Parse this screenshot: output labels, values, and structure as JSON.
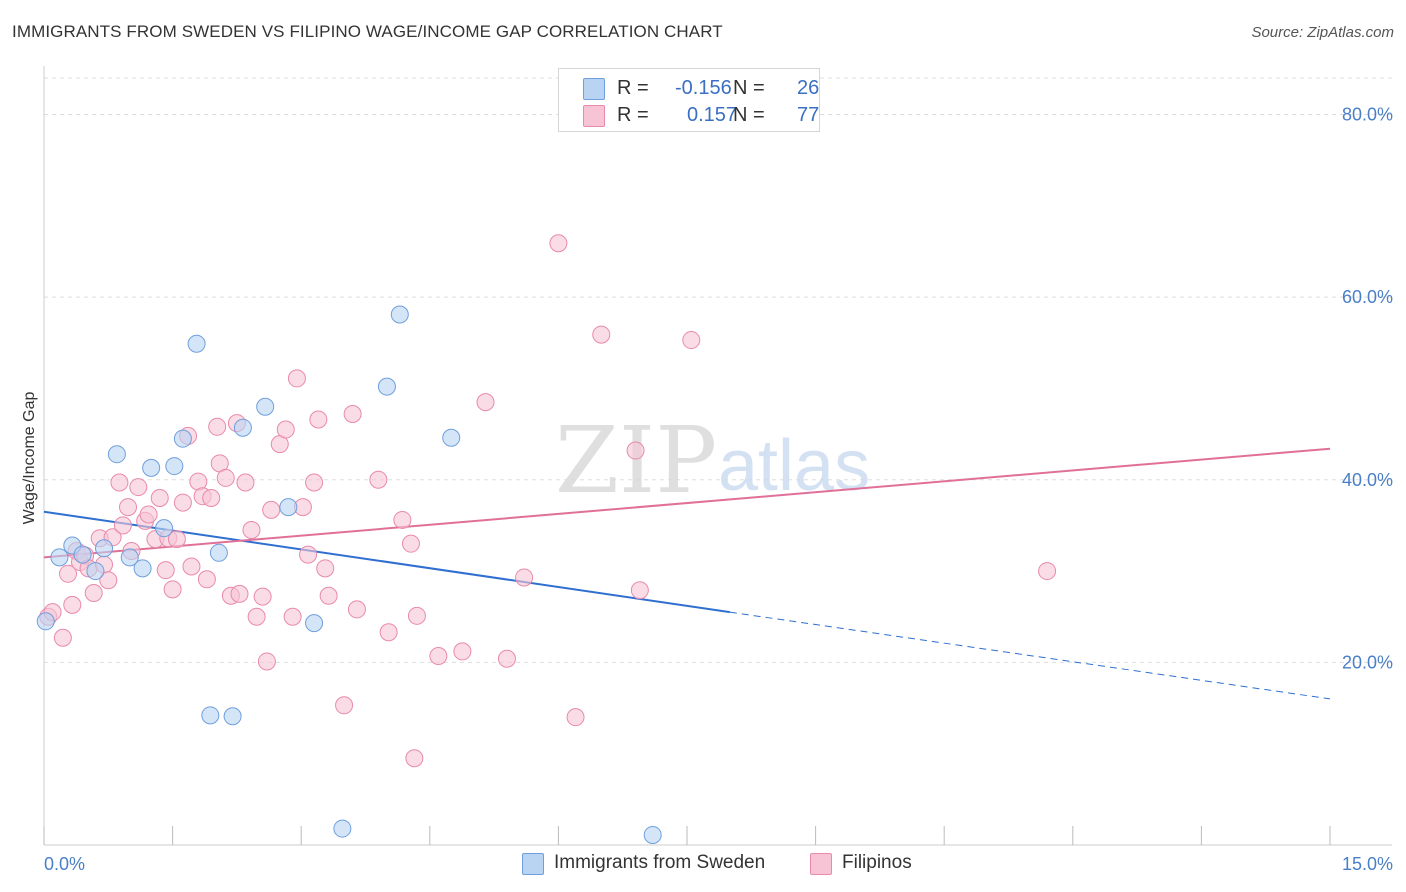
{
  "title": "IMMIGRANTS FROM SWEDEN VS FILIPINO WAGE/INCOME GAP CORRELATION CHART",
  "source": "Source: ZipAtlas.com",
  "watermark": {
    "zip": "ZIP",
    "atlas": "atlas"
  },
  "legend": {
    "rows": [
      {
        "r_label": "R =",
        "r_value": "-0.156",
        "n_label": "N =",
        "n_value": "26"
      },
      {
        "r_label": "R =",
        "r_value": "0.157",
        "n_label": "N =",
        "n_value": "77"
      }
    ]
  },
  "bottom_legend": [
    "Immigrants from Sweden",
    "Filipinos"
  ],
  "colors": {
    "sweden_fill": "#b9d3f3",
    "sweden_stroke": "#6f9fdc",
    "sweden_line": "#2f6fd0",
    "filipino_fill": "#f7c4d5",
    "filipino_stroke": "#e98aab",
    "filipino_line": "#e07098",
    "tick_text": "#4a7fc8",
    "grid": "#dddddd"
  },
  "chart_data": {
    "type": "scatter",
    "title": "IMMIGRANTS FROM SWEDEN VS FILIPINO WAGE/INCOME GAP CORRELATION CHART",
    "xlabel": "",
    "ylabel": "Wage/Income Gap",
    "xlim": [
      0,
      15
    ],
    "ylim": [
      0,
      84
    ],
    "x_tick_labels": [
      "0.0%",
      "15.0%"
    ],
    "y_ticks": [
      20,
      40,
      60,
      80
    ],
    "y_tick_labels": [
      "20.0%",
      "40.0%",
      "60.0%",
      "80.0%"
    ],
    "grid": true,
    "series": [
      {
        "name": "Immigrants from Sweden",
        "r": -0.156,
        "n": 26,
        "points": [
          [
            0.02,
            24.5
          ],
          [
            0.18,
            31.5
          ],
          [
            0.33,
            32.8
          ],
          [
            0.45,
            31.8
          ],
          [
            0.6,
            30.0
          ],
          [
            0.7,
            32.5
          ],
          [
            0.85,
            42.8
          ],
          [
            1.0,
            31.5
          ],
          [
            1.15,
            30.3
          ],
          [
            1.25,
            41.3
          ],
          [
            1.4,
            34.7
          ],
          [
            1.52,
            41.5
          ],
          [
            1.62,
            44.5
          ],
          [
            1.78,
            54.9
          ],
          [
            1.94,
            14.2
          ],
          [
            2.04,
            32.0
          ],
          [
            2.2,
            14.1
          ],
          [
            2.32,
            45.7
          ],
          [
            2.58,
            48.0
          ],
          [
            2.85,
            37.0
          ],
          [
            3.15,
            24.3
          ],
          [
            3.48,
            1.8
          ],
          [
            4.0,
            50.2
          ],
          [
            4.15,
            58.1
          ],
          [
            4.75,
            44.6
          ],
          [
            7.1,
            1.1
          ]
        ],
        "trend": {
          "x": [
            0,
            8.0
          ],
          "y": [
            36.5,
            25.5
          ],
          "dashed_to": [
            15.0,
            16.0
          ]
        }
      },
      {
        "name": "Filipinos",
        "r": 0.157,
        "n": 77,
        "points": [
          [
            0.05,
            25.0
          ],
          [
            0.1,
            25.5
          ],
          [
            0.22,
            22.7
          ],
          [
            0.28,
            29.7
          ],
          [
            0.33,
            26.3
          ],
          [
            0.38,
            32.2
          ],
          [
            0.42,
            31.0
          ],
          [
            0.48,
            31.7
          ],
          [
            0.52,
            30.3
          ],
          [
            0.58,
            27.6
          ],
          [
            0.65,
            33.6
          ],
          [
            0.7,
            30.7
          ],
          [
            0.75,
            29.0
          ],
          [
            0.8,
            33.7
          ],
          [
            0.88,
            39.7
          ],
          [
            0.92,
            35.0
          ],
          [
            0.98,
            37.0
          ],
          [
            1.02,
            32.2
          ],
          [
            1.1,
            39.2
          ],
          [
            1.18,
            35.5
          ],
          [
            1.22,
            36.2
          ],
          [
            1.3,
            33.5
          ],
          [
            1.35,
            38.0
          ],
          [
            1.42,
            30.1
          ],
          [
            1.45,
            33.6
          ],
          [
            1.5,
            28.0
          ],
          [
            1.55,
            33.5
          ],
          [
            1.62,
            37.5
          ],
          [
            1.68,
            44.8
          ],
          [
            1.72,
            30.5
          ],
          [
            1.8,
            39.8
          ],
          [
            1.85,
            38.2
          ],
          [
            1.9,
            29.1
          ],
          [
            1.95,
            38.0
          ],
          [
            2.02,
            45.8
          ],
          [
            2.05,
            41.8
          ],
          [
            2.12,
            40.2
          ],
          [
            2.18,
            27.3
          ],
          [
            2.25,
            46.2
          ],
          [
            2.28,
            27.5
          ],
          [
            2.35,
            39.7
          ],
          [
            2.42,
            34.5
          ],
          [
            2.48,
            25.0
          ],
          [
            2.55,
            27.2
          ],
          [
            2.6,
            20.1
          ],
          [
            2.65,
            36.7
          ],
          [
            2.75,
            43.9
          ],
          [
            2.82,
            45.5
          ],
          [
            2.9,
            25.0
          ],
          [
            2.95,
            51.1
          ],
          [
            3.02,
            37.0
          ],
          [
            3.08,
            31.8
          ],
          [
            3.15,
            39.7
          ],
          [
            3.2,
            46.6
          ],
          [
            3.28,
            30.3
          ],
          [
            3.32,
            27.3
          ],
          [
            3.5,
            15.3
          ],
          [
            3.6,
            47.2
          ],
          [
            3.65,
            25.8
          ],
          [
            3.9,
            40.0
          ],
          [
            4.02,
            23.3
          ],
          [
            4.18,
            35.6
          ],
          [
            4.28,
            33.0
          ],
          [
            4.32,
            9.5
          ],
          [
            4.35,
            25.1
          ],
          [
            4.6,
            20.7
          ],
          [
            4.88,
            21.2
          ],
          [
            5.15,
            48.5
          ],
          [
            5.4,
            20.4
          ],
          [
            5.6,
            29.3
          ],
          [
            6.0,
            65.9
          ],
          [
            6.2,
            14.0
          ],
          [
            6.5,
            55.9
          ],
          [
            6.9,
            43.2
          ],
          [
            6.95,
            27.9
          ],
          [
            7.55,
            55.3
          ],
          [
            11.7,
            30.0
          ]
        ],
        "trend": {
          "x": [
            0,
            15.0
          ],
          "y": [
            31.5,
            43.4
          ]
        }
      }
    ]
  }
}
